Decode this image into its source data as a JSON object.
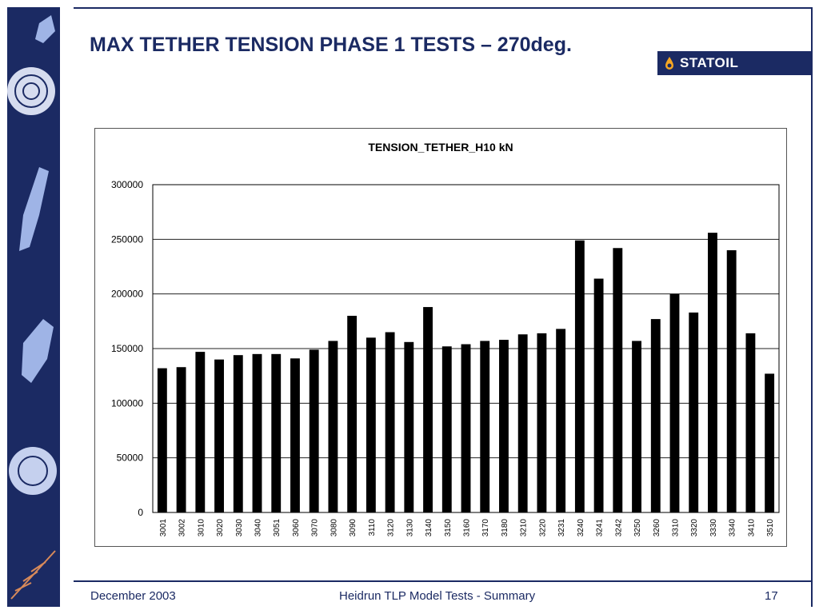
{
  "slide": {
    "title": "MAX TETHER TENSION PHASE 1 TESTS – 270deg.",
    "logo_text": "STATOIL",
    "footer_left": "December 2003",
    "footer_center": "Heidrun TLP Model Tests - Summary",
    "page_number": "17"
  },
  "colors": {
    "navy": "#1b2a63",
    "bar": "#000000",
    "sidebar_art": "#9fb4e6"
  },
  "chart_data": {
    "type": "bar",
    "title": "TENSION_TETHER_H10   kN",
    "ylim": [
      0,
      300000
    ],
    "yticks": [
      0,
      50000,
      100000,
      150000,
      200000,
      250000,
      300000
    ],
    "grid": true,
    "categories": [
      "3001",
      "3002",
      "3010",
      "3020",
      "3030",
      "3040",
      "3051",
      "3060",
      "3070",
      "3080",
      "3090",
      "3110",
      "3120",
      "3130",
      "3140",
      "3150",
      "3160",
      "3170",
      "3180",
      "3210",
      "3220",
      "3231",
      "3240",
      "3241",
      "3242",
      "3250",
      "3260",
      "3310",
      "3320",
      "3330",
      "3340",
      "3410",
      "3510"
    ],
    "values": [
      132000,
      133000,
      147000,
      140000,
      144000,
      145000,
      145000,
      141000,
      149000,
      157000,
      180000,
      160000,
      165000,
      156000,
      188000,
      152000,
      154000,
      157000,
      158000,
      163000,
      164000,
      168000,
      249000,
      214000,
      242000,
      157000,
      177000,
      200000,
      183000,
      256000,
      240000,
      164000,
      127000
    ]
  }
}
